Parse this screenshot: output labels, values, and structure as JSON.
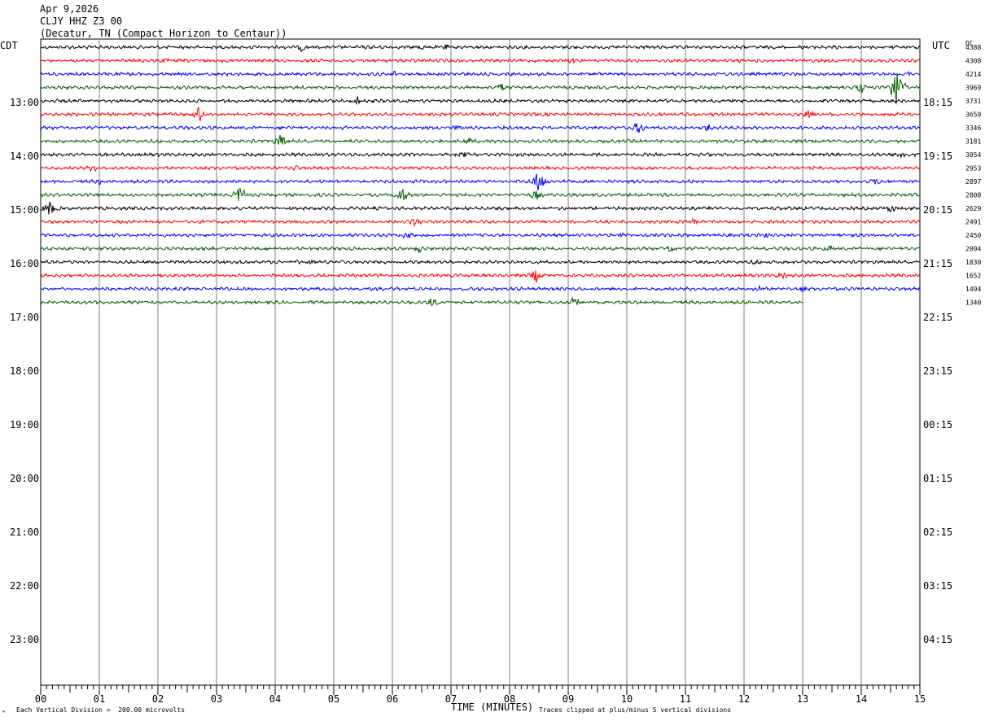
{
  "header": {
    "date": "Apr 9,2026",
    "station": "CLJY HHZ Z3 00",
    "location": "(Decatur, TN (Compact Horizon to Centaur))"
  },
  "left_tz": "CDT",
  "right_tz": "UTC",
  "dc_label": "DC",
  "footer": {
    "scale_note": "Each Vertical Division =  200.00 microvolts",
    "x_title": "TIME (MINUTES)",
    "clip_note": "Traces clipped at plus/minus 5 vertical divisions",
    "corner_mark": "^"
  },
  "colors": {
    "black": "#000000",
    "red": "#ff0000",
    "blue": "#0000ff",
    "green": "#006400",
    "grid": "#808080"
  },
  "chart_data": {
    "type": "line",
    "title": "CLJY HHZ Z3 00",
    "xlabel": "TIME (MINUTES)",
    "x_ticks": [
      "00",
      "01",
      "02",
      "03",
      "04",
      "05",
      "06",
      "07",
      "08",
      "09",
      "10",
      "11",
      "12",
      "13",
      "14",
      "15"
    ],
    "xlim": [
      0,
      15
    ],
    "left_hour_labels": [
      "13:00",
      "14:00",
      "15:00",
      "16:00",
      "17:00",
      "18:00",
      "19:00",
      "20:00",
      "21:00",
      "22:00",
      "23:00"
    ],
    "right_hour_labels": [
      "18:15",
      "19:15",
      "20:15",
      "21:15",
      "22:15",
      "23:15",
      "00:15",
      "01:15",
      "02:15",
      "03:15",
      "04:15"
    ],
    "trace_color_cycle": [
      "black",
      "red",
      "blue",
      "green"
    ],
    "dc_offsets": [
      "4388",
      "4308",
      "4214",
      "3969",
      "3731",
      "3659",
      "3346",
      "3181",
      "3054",
      "2953",
      "2897",
      "2808",
      "2629",
      "2491",
      "2450",
      "2094",
      "1830",
      "1652",
      "1494",
      "1340"
    ],
    "last_trace_end_minute": 13,
    "events": [
      {
        "trace": 0,
        "minute": 4.45,
        "amp": 6
      },
      {
        "trace": 0,
        "minute": 6.45,
        "amp": 5
      },
      {
        "trace": 0,
        "minute": 6.9,
        "amp": 4
      },
      {
        "trace": 1,
        "minute": 2.1,
        "amp": 4
      },
      {
        "trace": 1,
        "minute": 9.05,
        "amp": 4
      },
      {
        "trace": 2,
        "minute": 6.05,
        "amp": 4
      },
      {
        "trace": 2,
        "minute": 14.8,
        "amp": 4
      },
      {
        "trace": 3,
        "minute": 7.85,
        "amp": 6
      },
      {
        "trace": 3,
        "minute": 14.0,
        "amp": 8
      },
      {
        "trace": 3,
        "minute": 14.6,
        "amp": 28
      },
      {
        "trace": 4,
        "minute": 5.4,
        "amp": 6
      },
      {
        "trace": 5,
        "minute": 2.7,
        "amp": 10
      },
      {
        "trace": 5,
        "minute": 13.1,
        "amp": 5
      },
      {
        "trace": 6,
        "minute": 7.1,
        "amp": 4
      },
      {
        "trace": 6,
        "minute": 10.2,
        "amp": 8
      },
      {
        "trace": 6,
        "minute": 11.4,
        "amp": 5
      },
      {
        "trace": 7,
        "minute": 4.1,
        "amp": 10
      },
      {
        "trace": 7,
        "minute": 7.3,
        "amp": 5
      },
      {
        "trace": 8,
        "minute": 14.7,
        "amp": 6
      },
      {
        "trace": 8,
        "minute": 7.2,
        "amp": 5
      },
      {
        "trace": 9,
        "minute": 0.9,
        "amp": 6
      },
      {
        "trace": 9,
        "minute": 4.35,
        "amp": 4
      },
      {
        "trace": 10,
        "minute": 8.5,
        "amp": 16
      },
      {
        "trace": 10,
        "minute": 1.0,
        "amp": 4
      },
      {
        "trace": 10,
        "minute": 14.25,
        "amp": 5
      },
      {
        "trace": 11,
        "minute": 3.4,
        "amp": 12
      },
      {
        "trace": 11,
        "minute": 6.15,
        "amp": 12
      },
      {
        "trace": 11,
        "minute": 8.45,
        "amp": 7
      },
      {
        "trace": 12,
        "minute": 0.15,
        "amp": 10
      },
      {
        "trace": 12,
        "minute": 14.5,
        "amp": 6
      },
      {
        "trace": 13,
        "minute": 6.4,
        "amp": 7
      },
      {
        "trace": 13,
        "minute": 11.15,
        "amp": 5
      },
      {
        "trace": 14,
        "minute": 6.25,
        "amp": 5
      },
      {
        "trace": 14,
        "minute": 9.9,
        "amp": 4
      },
      {
        "trace": 14,
        "minute": 12.35,
        "amp": 4
      },
      {
        "trace": 15,
        "minute": 6.45,
        "amp": 5
      },
      {
        "trace": 15,
        "minute": 10.75,
        "amp": 6
      },
      {
        "trace": 15,
        "minute": 13.45,
        "amp": 5
      },
      {
        "trace": 16,
        "minute": 4.6,
        "amp": 4
      },
      {
        "trace": 16,
        "minute": 12.2,
        "amp": 4
      },
      {
        "trace": 17,
        "minute": 8.45,
        "amp": 9
      },
      {
        "trace": 17,
        "minute": 12.65,
        "amp": 6
      },
      {
        "trace": 18,
        "minute": 12.25,
        "amp": 5
      },
      {
        "trace": 18,
        "minute": 13.0,
        "amp": 4
      },
      {
        "trace": 19,
        "minute": 6.7,
        "amp": 7
      },
      {
        "trace": 19,
        "minute": 9.1,
        "amp": 7
      }
    ]
  }
}
